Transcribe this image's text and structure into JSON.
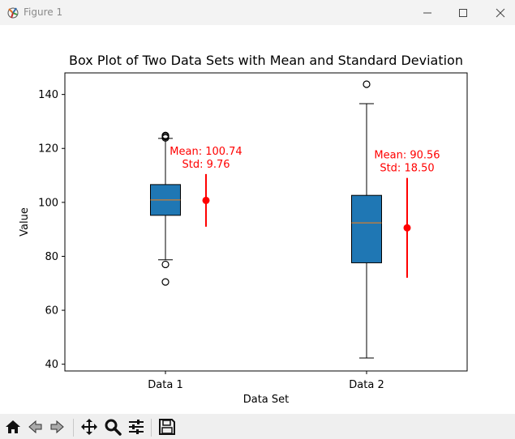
{
  "window": {
    "title": "Figure 1",
    "controls": [
      "minimize",
      "maximize",
      "close"
    ]
  },
  "toolbar": {
    "buttons": [
      {
        "name": "home",
        "icon": "home-icon"
      },
      {
        "name": "back",
        "icon": "back-arrow-icon"
      },
      {
        "name": "forward",
        "icon": "forward-arrow-icon"
      },
      {
        "name": "pan",
        "icon": "move-icon"
      },
      {
        "name": "zoom",
        "icon": "magnifier-icon"
      },
      {
        "name": "subplots",
        "icon": "sliders-icon"
      },
      {
        "name": "save",
        "icon": "floppy-disk-icon"
      }
    ]
  },
  "chart_data": {
    "type": "box",
    "title": "Box Plot of Two Data Sets with Mean and Standard Deviation",
    "xlabel": "Data Set",
    "ylabel": "Value",
    "ylim": [
      37.5,
      148
    ],
    "yticks": [
      40,
      60,
      80,
      100,
      120,
      140
    ],
    "categories": [
      "Data 1",
      "Data 2"
    ],
    "boxes": [
      {
        "name": "Data 1",
        "whisker_low": 78.7,
        "q1": 95.2,
        "median": 100.9,
        "q3": 106.6,
        "whisker_high": 123.7,
        "outliers": [
          124.4,
          124.8,
          123.9,
          77.0,
          70.5
        ]
      },
      {
        "name": "Data 2",
        "whisker_low": 42.3,
        "q1": 77.6,
        "median": 92.4,
        "q3": 102.6,
        "whisker_high": 136.6,
        "outliers": [
          143.8
        ]
      }
    ],
    "stats": [
      {
        "mean": 100.74,
        "std": 9.76,
        "mean_label": "Mean: 100.74",
        "std_label": "Std: 9.76"
      },
      {
        "mean": 90.56,
        "std": 18.5,
        "mean_label": "Mean: 90.56",
        "std_label": "Std: 18.50"
      }
    ],
    "colors": {
      "box": "#1f77b4",
      "median": "#ff7f0e",
      "annotation": "#ff0000",
      "axis": "#000000"
    },
    "grid": false
  }
}
